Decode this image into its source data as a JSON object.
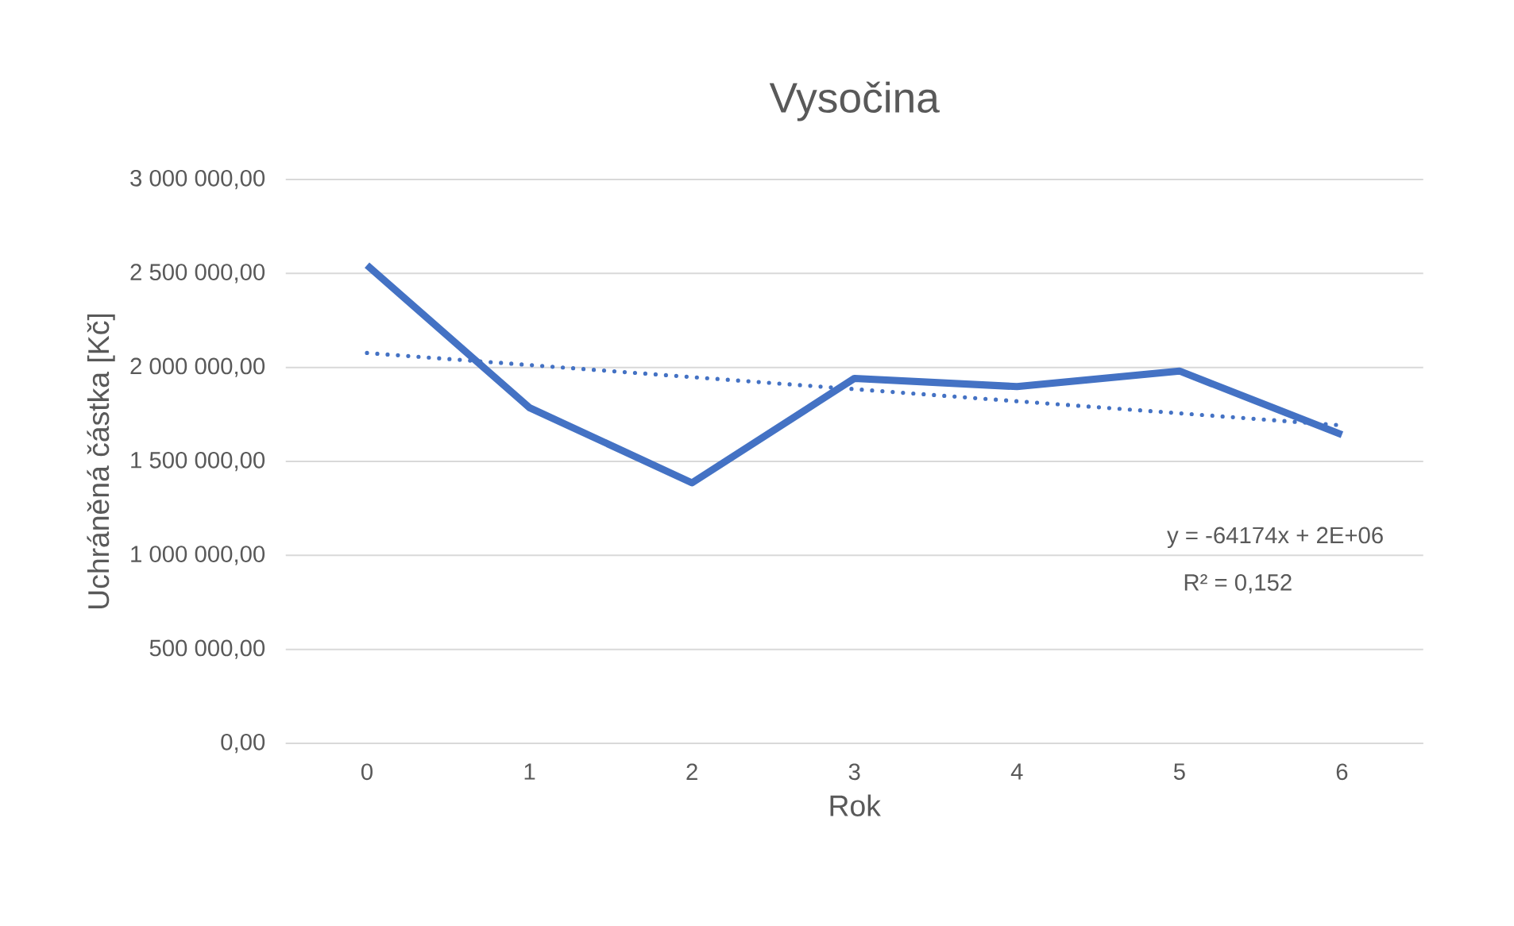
{
  "chart_data": {
    "type": "line",
    "title": "Vysočina",
    "xlabel": "Rok",
    "ylabel": "Uchráněná částka [Kč]",
    "x": [
      0,
      1,
      2,
      3,
      4,
      5,
      6
    ],
    "xlim": [
      -0.5,
      6.5
    ],
    "xticks": [
      0,
      1,
      2,
      3,
      4,
      5,
      6
    ],
    "ylim": [
      0,
      3000000
    ],
    "yticks": [
      {
        "value": 0,
        "label": "0,00"
      },
      {
        "value": 500000,
        "label": "500 000,00"
      },
      {
        "value": 1000000,
        "label": "1 000 000,00"
      },
      {
        "value": 1500000,
        "label": "1 500 000,00"
      },
      {
        "value": 2000000,
        "label": "2 000 000,00"
      },
      {
        "value": 2500000,
        "label": "2 500 000,00"
      },
      {
        "value": 3000000,
        "label": "3 000 000,00"
      }
    ],
    "grid": "y",
    "series": [
      {
        "color": "#4472c4",
        "values": [
          2544000,
          1786000,
          1386000,
          1942000,
          1898000,
          1981000,
          1642000
        ],
        "line_style": "solid"
      },
      {
        "type": "line",
        "color": "#4472c4",
        "x": [
          0,
          6
        ],
        "values": [
          2077000,
          1692000
        ],
        "line_style": "dotted"
      }
    ],
    "annotations": [
      "y = -64174x + 2E+06",
      "R² = 0,152"
    ]
  }
}
